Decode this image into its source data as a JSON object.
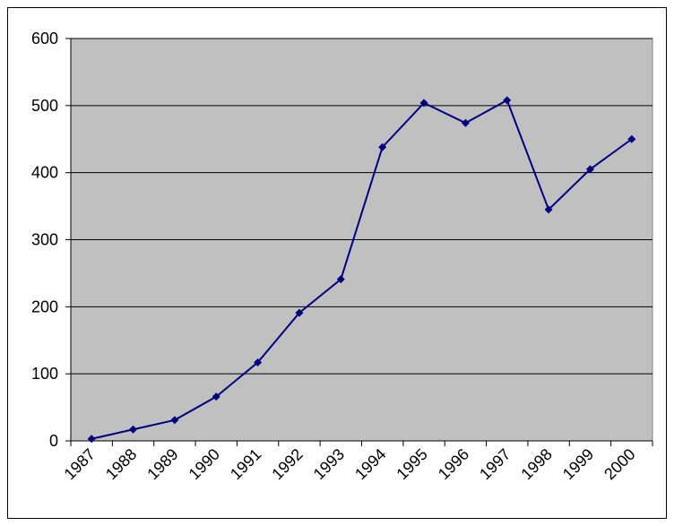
{
  "chart_data": {
    "type": "line",
    "categories": [
      "1987",
      "1988",
      "1989",
      "1990",
      "1991",
      "1992",
      "1993",
      "1994",
      "1995",
      "1996",
      "1997",
      "1998",
      "1999",
      "2000"
    ],
    "series": [
      {
        "values": [
          3,
          17,
          31,
          66,
          117,
          191,
          241,
          438,
          504,
          474,
          508,
          345,
          405,
          450
        ],
        "color": "#000080"
      }
    ],
    "ylim": [
      0,
      600
    ],
    "yticks": [
      "0",
      "100",
      "200",
      "300",
      "400",
      "500",
      "600"
    ],
    "xlabel": "",
    "ylabel": "",
    "title": "",
    "grid": "horizontal",
    "legend": "none",
    "colors": {
      "plot_background": "#c0c0c0",
      "gridline": "#000000",
      "series": "#000080"
    }
  }
}
